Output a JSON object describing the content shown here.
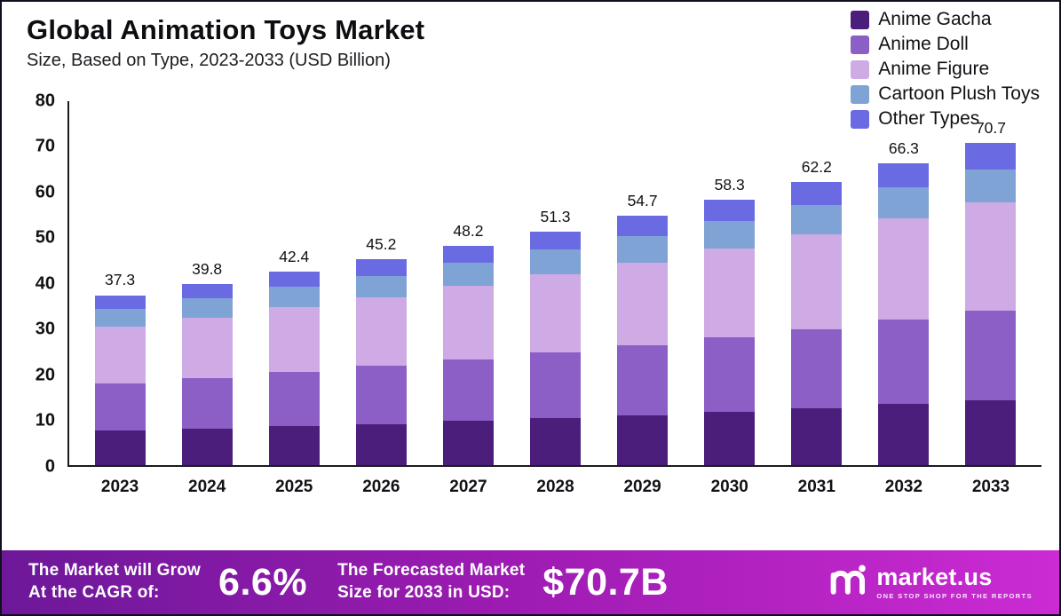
{
  "header": {
    "title": "Global Animation Toys Market",
    "subtitle": "Size, Based on Type, 2023-2033 (USD Billion)"
  },
  "chart_data": {
    "type": "bar",
    "stacked": true,
    "title": "Global Animation Toys Market",
    "subtitle": "Size, Based on Type, 2023-2033 (USD Billion)",
    "xlabel": "",
    "ylabel": "USD Billion",
    "ylim": [
      0,
      80
    ],
    "yticks": [
      0,
      10,
      20,
      30,
      40,
      50,
      60,
      70,
      80
    ],
    "grid": false,
    "legend_position": "top-right",
    "categories": [
      "2023",
      "2024",
      "2025",
      "2026",
      "2027",
      "2028",
      "2029",
      "2030",
      "2031",
      "2032",
      "2033"
    ],
    "totals": [
      37.3,
      39.8,
      42.4,
      45.2,
      48.2,
      51.3,
      54.7,
      58.3,
      62.2,
      66.3,
      70.7
    ],
    "series": [
      {
        "name": "Anime Gacha",
        "color": "#4a1e7a",
        "values": [
          7.5,
          8.0,
          8.5,
          9.0,
          9.7,
          10.3,
          10.9,
          11.7,
          12.4,
          13.3,
          14.1
        ]
      },
      {
        "name": "Anime Doll",
        "color": "#8b5fc6",
        "values": [
          10.4,
          11.1,
          11.9,
          12.7,
          13.5,
          14.4,
          15.3,
          16.3,
          17.4,
          18.6,
          19.8
        ]
      },
      {
        "name": "Anime Figure",
        "color": "#cfabe6",
        "values": [
          12.5,
          13.3,
          14.2,
          15.1,
          16.1,
          17.2,
          18.3,
          19.5,
          20.8,
          22.2,
          23.7
        ]
      },
      {
        "name": "Cartoon Plush Toys",
        "color": "#7fa3d4",
        "values": [
          3.9,
          4.2,
          4.5,
          4.7,
          5.1,
          5.4,
          5.7,
          6.1,
          6.5,
          7.0,
          7.4
        ]
      },
      {
        "name": "Other Types",
        "color": "#6a6be2",
        "values": [
          3.0,
          3.2,
          3.3,
          3.7,
          3.8,
          4.0,
          4.5,
          4.7,
          5.1,
          5.2,
          5.7
        ]
      }
    ]
  },
  "footer": {
    "cagr_label_line1": "The Market will Grow",
    "cagr_label_line2": "At the CAGR of:",
    "cagr_value": "6.6%",
    "forecast_label_line1": "The Forecasted Market",
    "forecast_label_line2": "Size for 2033 in USD:",
    "forecast_value": "$70.7B",
    "brand_name": "market.us",
    "brand_tagline": "ONE STOP SHOP FOR THE REPORTS"
  }
}
